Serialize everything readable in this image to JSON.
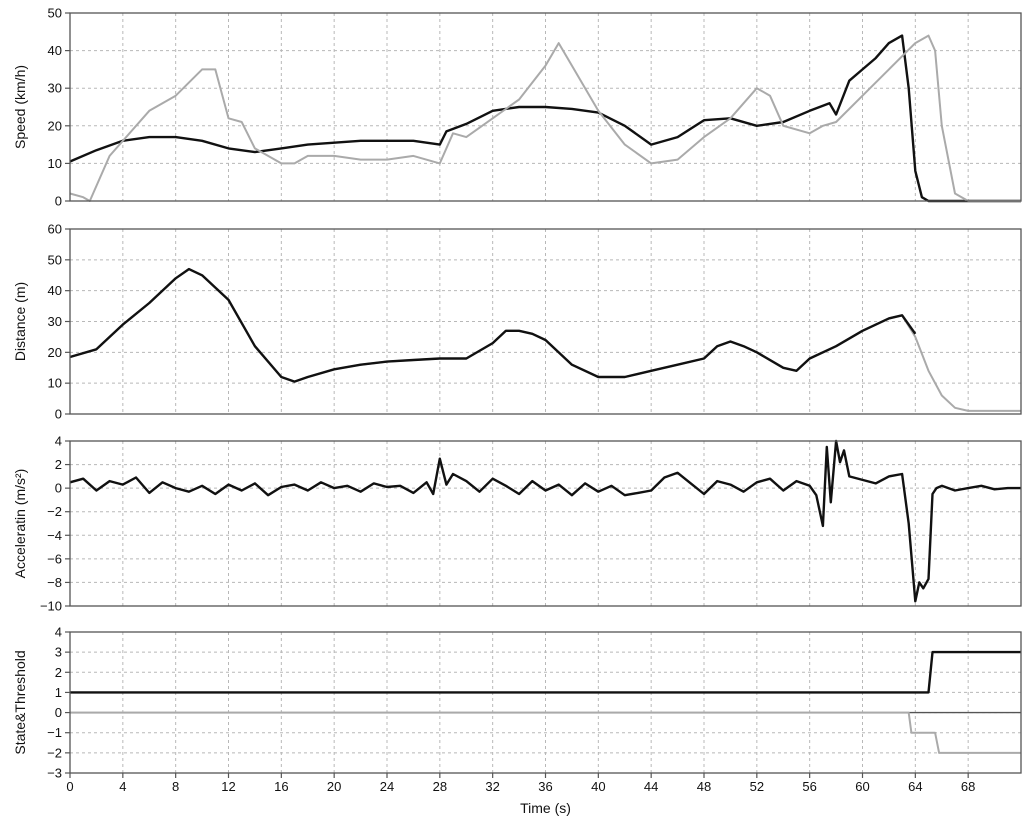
{
  "chart_data": [
    {
      "type": "line",
      "ylabel": "Speed (km/h)",
      "ylim": [
        0,
        50
      ],
      "yticks": [
        0,
        10,
        20,
        30,
        40,
        50
      ],
      "grid": true,
      "series": [
        {
          "color": "#111111",
          "x": [
            0,
            2,
            4,
            6,
            8,
            10,
            12,
            14,
            16,
            18,
            20,
            22,
            24,
            26,
            28,
            28.5,
            30,
            32,
            34,
            36,
            38,
            40,
            42,
            44,
            46,
            48,
            50,
            52,
            54,
            56,
            57.5,
            58,
            59,
            60,
            61,
            62,
            63,
            63.5,
            64,
            64.5,
            65,
            70,
            72
          ],
          "y": [
            10.5,
            13.5,
            16,
            17,
            17,
            16,
            14,
            13,
            14,
            15,
            15.5,
            16,
            16,
            16,
            15,
            18.5,
            20.5,
            24,
            25,
            25,
            24.5,
            23.5,
            20,
            15,
            17,
            21.5,
            22,
            20,
            21,
            24,
            26,
            23,
            32,
            35,
            38,
            42,
            44,
            30,
            8,
            1,
            0,
            0,
            0
          ]
        },
        {
          "color": "#aaaaaa",
          "x": [
            0,
            1,
            1.5,
            3,
            6,
            8,
            10,
            11,
            12,
            13,
            14,
            16,
            17,
            18,
            20,
            22,
            24,
            26,
            28,
            29,
            30,
            32,
            34,
            36,
            37,
            38,
            40,
            42,
            44,
            46,
            48,
            50,
            52,
            53,
            54,
            56,
            57,
            58,
            60,
            62,
            64,
            65,
            65.5,
            66,
            67,
            68,
            70,
            72
          ],
          "y": [
            2,
            1,
            0,
            12,
            24,
            28,
            35,
            35,
            22,
            21,
            14,
            10,
            10,
            12,
            12,
            11,
            11,
            12,
            10,
            18,
            17,
            22,
            27,
            36,
            42,
            36,
            24,
            15,
            10,
            11,
            17,
            22,
            30,
            28,
            20,
            18,
            20,
            21,
            28,
            35,
            42,
            44,
            40,
            20,
            2,
            0,
            0,
            0
          ]
        }
      ]
    },
    {
      "type": "line",
      "ylabel": "Distance (m)",
      "ylim": [
        0,
        60
      ],
      "yticks": [
        0,
        10,
        20,
        30,
        40,
        50,
        60
      ],
      "grid": true,
      "series": [
        {
          "color": "#aaaaaa",
          "x": [
            0,
            2,
            4,
            6,
            8,
            9,
            10,
            12,
            14,
            16,
            17,
            18,
            20,
            22,
            24,
            26,
            28,
            29,
            30,
            32,
            33,
            34,
            35,
            36,
            38,
            40,
            42,
            44,
            46,
            48,
            49,
            50,
            51,
            52,
            54,
            55,
            56,
            58,
            60,
            62,
            63,
            64,
            65,
            66,
            67,
            68,
            70,
            72
          ],
          "y": [
            18.5,
            21,
            29,
            36,
            44,
            47,
            45,
            37,
            22,
            12,
            10.5,
            12,
            14.5,
            16,
            17,
            17.5,
            18,
            18,
            18,
            23,
            27,
            27,
            26,
            24,
            16,
            12,
            12,
            14,
            16,
            18,
            22,
            23.5,
            22,
            20,
            15,
            14,
            18,
            22,
            27,
            31,
            32,
            25,
            14,
            6,
            2,
            1,
            1,
            1
          ]
        },
        {
          "color": "#111111",
          "x": [
            0,
            2,
            4,
            6,
            8,
            9,
            10,
            12,
            14,
            16,
            17,
            18,
            20,
            22,
            24,
            26,
            28,
            29,
            30,
            32,
            33,
            34,
            35,
            36,
            38,
            40,
            42,
            44,
            46,
            48,
            49,
            50,
            51,
            52,
            54,
            55,
            56,
            58,
            60,
            62,
            63,
            64
          ],
          "y": [
            18.5,
            21,
            29,
            36,
            44,
            47,
            45,
            37,
            22,
            12,
            10.5,
            12,
            14.5,
            16,
            17,
            17.5,
            18,
            18,
            18,
            23,
            27,
            27,
            26,
            24,
            16,
            12,
            12,
            14,
            16,
            18,
            22,
            23.5,
            22,
            20,
            15,
            14,
            18,
            22,
            27,
            31,
            32,
            26
          ]
        }
      ]
    },
    {
      "type": "line",
      "ylabel": "Acceleratin (m/s²)",
      "ylim": [
        -10,
        4
      ],
      "yticks": [
        -10,
        -8,
        -6,
        -4,
        -2,
        0,
        2,
        4
      ],
      "grid": true,
      "series": [
        {
          "color": "#111111",
          "x": [
            0,
            1,
            2,
            3,
            4,
            5,
            6,
            7,
            8,
            9,
            10,
            11,
            12,
            13,
            14,
            15,
            16,
            17,
            18,
            19,
            20,
            21,
            22,
            23,
            24,
            25,
            26,
            27,
            27.5,
            28,
            28.5,
            29,
            30,
            31,
            32,
            33,
            34,
            35,
            36,
            37,
            38,
            39,
            40,
            41,
            42,
            43,
            44,
            45,
            46,
            47,
            48,
            49,
            50,
            51,
            52,
            53,
            54,
            55,
            56,
            56.5,
            57,
            57.3,
            57.6,
            58,
            58.3,
            58.6,
            59,
            60,
            61,
            62,
            63,
            63.5,
            64,
            64.3,
            64.6,
            65,
            65.3,
            65.6,
            66,
            67,
            68,
            69,
            70,
            71,
            72
          ],
          "y": [
            0.5,
            0.8,
            -0.2,
            0.6,
            0.3,
            0.9,
            -0.4,
            0.5,
            0,
            -0.3,
            0.2,
            -0.5,
            0.3,
            -0.2,
            0.4,
            -0.6,
            0.1,
            0.3,
            -0.2,
            0.5,
            0,
            0.2,
            -0.3,
            0.4,
            0.1,
            0.2,
            -0.4,
            0.5,
            -0.5,
            2.5,
            0.3,
            1.2,
            0.6,
            -0.3,
            0.8,
            0.2,
            -0.5,
            0.6,
            -0.2,
            0.3,
            -0.6,
            0.4,
            -0.3,
            0.2,
            -0.6,
            -0.4,
            -0.2,
            0.9,
            1.3,
            0.4,
            -0.5,
            0.6,
            0.3,
            -0.3,
            0.5,
            0.8,
            -0.2,
            0.6,
            0.2,
            -0.6,
            -3.2,
            3.5,
            -1.2,
            4.5,
            2.2,
            3.2,
            1,
            0.7,
            0.4,
            1,
            1.2,
            -3,
            -9.6,
            -8,
            -8.5,
            -7.7,
            -0.5,
            0,
            0.2,
            -0.2,
            0,
            0.2,
            -0.1,
            0,
            0
          ]
        }
      ]
    },
    {
      "type": "line",
      "ylabel": "State&Threshold",
      "xlabel": "Time (s)",
      "xlim": [
        0,
        72
      ],
      "xticks": [
        0,
        4,
        8,
        12,
        16,
        20,
        24,
        28,
        32,
        36,
        40,
        44,
        48,
        52,
        56,
        60,
        64,
        68
      ],
      "ylim": [
        -3,
        4
      ],
      "yticks": [
        -3,
        -2,
        -1,
        0,
        1,
        2,
        3,
        4
      ],
      "grid": true,
      "series": [
        {
          "color": "#111111",
          "x": [
            0,
            65,
            65.3,
            72
          ],
          "y": [
            1,
            1,
            3,
            3
          ]
        },
        {
          "color": "#aaaaaa",
          "x": [
            0,
            63.5,
            63.7,
            65.5,
            65.8,
            72
          ],
          "y": [
            0,
            0,
            -1,
            -1,
            -2,
            -2
          ]
        }
      ]
    }
  ]
}
